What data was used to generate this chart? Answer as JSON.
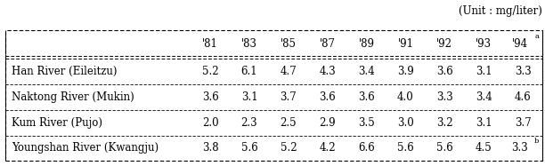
{
  "unit_label": "(Unit : mg/liter)",
  "header": [
    "",
    "'81",
    "'83",
    "'85",
    "'87",
    "'89",
    "'91",
    "'92",
    "'93",
    "'94a"
  ],
  "rows": [
    [
      "Han River (Eileitzu)",
      "5.2",
      "6.1",
      "4.7",
      "4.3",
      "3.4",
      "3.9",
      "3.6",
      "3.1",
      "3.3"
    ],
    [
      "Naktong River (Mukin)",
      "3.6",
      "3.1",
      "3.7",
      "3.6",
      "3.6",
      "4.0",
      "3.3",
      "3.4",
      "4.6"
    ],
    [
      "Kum River (Pujo)",
      "2.0",
      "2.3",
      "2.5",
      "2.9",
      "3.5",
      "3.0",
      "3.2",
      "3.1",
      "3.7"
    ],
    [
      "Youngshan River (Kwangju)",
      "3.8",
      "5.6",
      "5.2",
      "4.2",
      "6.6",
      "5.6",
      "5.6",
      "4.5",
      "3.3b"
    ]
  ],
  "col94_header_sup": "a",
  "last_row_last_sup": "b",
  "background_color": "#ffffff",
  "font_size": 8.5,
  "fig_width": 6.12,
  "fig_height": 1.87,
  "dpi": 100
}
